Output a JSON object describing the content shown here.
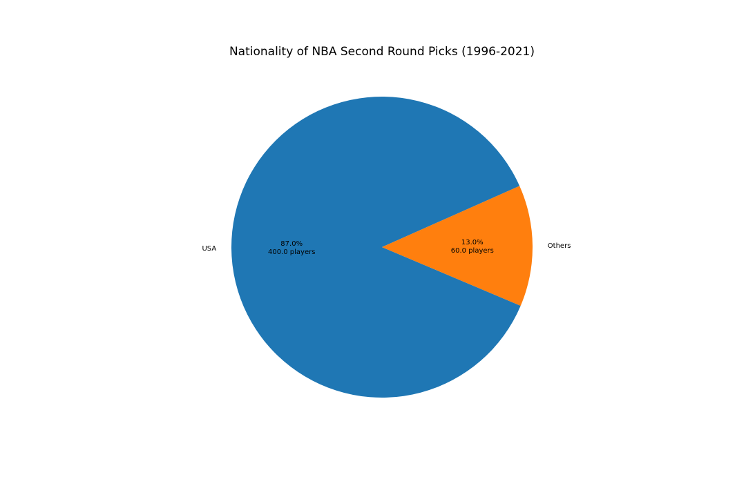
{
  "chart_data": {
    "type": "pie",
    "title": "Nationality of NBA Second Round Picks (1996-2021)",
    "slices": [
      {
        "label": "USA",
        "value": 400.0,
        "percent": "87.0%",
        "count_text": "400.0 players",
        "color": "#1f77b4"
      },
      {
        "label": "Others",
        "value": 60.0,
        "percent": "13.0%",
        "count_text": "60.0 players",
        "color": "#ff7f0e"
      }
    ],
    "start_angle_deg": 24,
    "direction": "counterclockwise",
    "legend": "none"
  }
}
